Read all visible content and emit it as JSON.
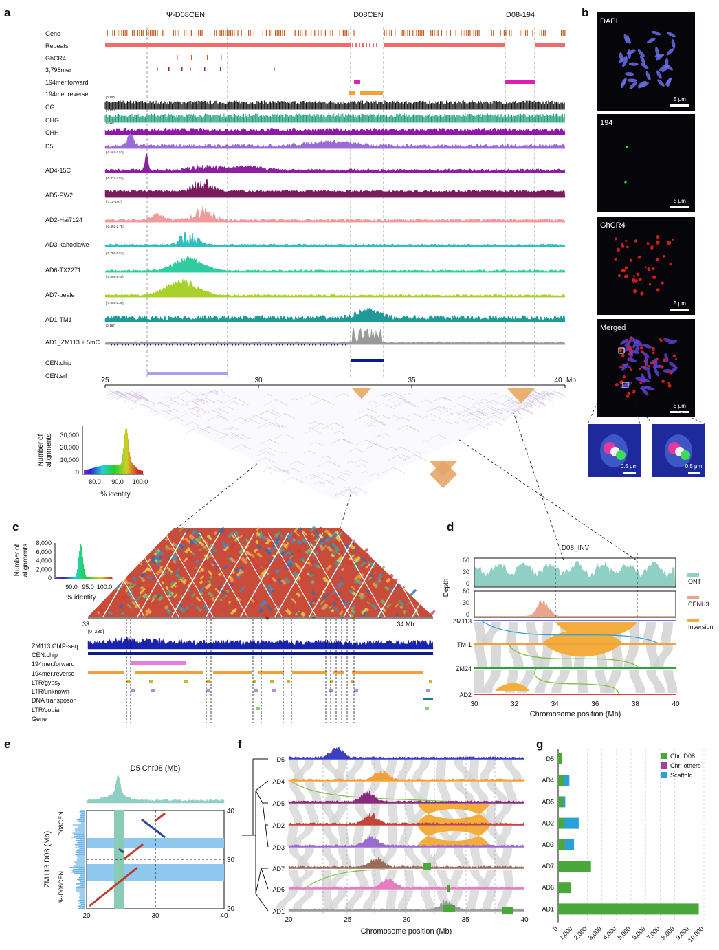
{
  "panel_letters": [
    "a",
    "b",
    "c",
    "d",
    "e",
    "f",
    "g"
  ],
  "panel_a": {
    "region_labels": [
      "Ψ-D08CEN",
      "D08CEN",
      "D08-194"
    ],
    "tracks": [
      {
        "label": "Gene",
        "scale": ""
      },
      {
        "label": "Repeats",
        "scale": ""
      },
      {
        "label": "GhCR4",
        "scale": ""
      },
      {
        "label": "3,798mer",
        "scale": ""
      },
      {
        "label": "194mer.forward",
        "scale": ""
      },
      {
        "label": "194mer.reverse",
        "scale": ""
      },
      {
        "label": "CG",
        "scale": "[0-100]"
      },
      {
        "label": "CHG",
        "scale": "[0-100]"
      },
      {
        "label": "CHH",
        "scale": "[0-12]"
      },
      {
        "label": "D5",
        "scale": "[-0.853-3.68]"
      },
      {
        "label": "AD4-15C",
        "scale": "[-0.567-2.53]"
      },
      {
        "label": "AD5-PW2",
        "scale": "[-0.873-3.51]"
      },
      {
        "label": "AD2-Hai7124",
        "scale": "[-1.11-5.07]"
      },
      {
        "label": "AD3-kahoolawe",
        "scale": "[-0.493-2.79]"
      },
      {
        "label": "AD6-TX2271",
        "scale": "[-0.780-5.53]"
      },
      {
        "label": "AD7-peale",
        "scale": "[-0.956-5.46]"
      },
      {
        "label": "AD1-TM1",
        "scale": "[-1.651-2.38]"
      },
      {
        "label": "AD1_ZM113 + 5mC",
        "scale": "[0-167]"
      },
      {
        "label": "CEN.chip",
        "scale": ""
      },
      {
        "label": "CEN.srf",
        "scale": ""
      }
    ],
    "axis_ticks": [
      "25",
      "30",
      "35",
      "40"
    ],
    "axis_unit": "Mb",
    "inset": {
      "ylabel_lines": [
        "Number of",
        "alignments"
      ],
      "xlabel": "% identity",
      "yticks": [
        "0",
        "10,000",
        "20,000",
        "30,000"
      ],
      "xticks": [
        "80.0",
        "90.0",
        "100.0"
      ]
    }
  },
  "panel_b": {
    "images": [
      {
        "label": "DAPI",
        "scalebar": "5 μm"
      },
      {
        "label": "194",
        "scalebar": "5 μm"
      },
      {
        "label": "GhCR4",
        "scalebar": "5 μm"
      },
      {
        "label": "Merged",
        "scalebar": "5 μm"
      }
    ],
    "zoom_scalebars": [
      "0.5 μm",
      "0.5 μm"
    ]
  },
  "panel_c": {
    "inset": {
      "ylabel_lines": [
        "Number of",
        "alignments"
      ],
      "xlabel": "% identity",
      "yticks": [
        "0",
        "2,000",
        "4,000",
        "6,000",
        "8,000"
      ],
      "xticks": [
        "90.0",
        "95.0",
        "100.0"
      ]
    },
    "axis_start": "33",
    "axis_end": "34 Mb",
    "chip_scale": "[0–235]",
    "tracks": [
      "ZM113 ChIP-seq",
      "CEN.chip",
      "194mer.forward",
      "194mer.reverse",
      "LTR/gypsy",
      "LTR/unknown",
      "DNA transposon",
      "LTR/copia",
      "Gene"
    ]
  },
  "panel_d": {
    "title": "D08_INV",
    "ylabel": "Depth",
    "yticks_top": [
      "60",
      "30",
      "0"
    ],
    "yticks_bottom": [
      "60",
      "30",
      "0"
    ],
    "legend": [
      {
        "label": "ONT",
        "color": "#8fcfc4"
      },
      {
        "label": "CENH3",
        "color": "#e8a48f"
      },
      {
        "label": "Inversion",
        "color": "#f4ac3d"
      }
    ],
    "genomes": [
      "ZM113",
      "TM-1",
      "ZM24",
      "AD2"
    ],
    "xticks": [
      "30",
      "32",
      "34",
      "36",
      "38",
      "40"
    ],
    "xlabel": "Chromosome position (Mb)"
  },
  "panel_e": {
    "top_label": "D5 Chr08 (Mb)",
    "ylabel": "ZM113 D08 (Mb)",
    "side_labels": [
      "D08CEN",
      "Ψ-D08CEN"
    ],
    "xticks": [
      "20",
      "30",
      "40"
    ],
    "yticks": [
      "40",
      "30",
      "20"
    ]
  },
  "panel_f": {
    "genomes": [
      "D5",
      "AD4",
      "AD5",
      "AD2",
      "AD3",
      "AD7",
      "AD6",
      "AD1"
    ],
    "xticks": [
      "20",
      "25",
      "30",
      "35",
      "40"
    ],
    "xlabel": "Chromosome position (Mb)"
  },
  "chart_data": {
    "type": "bar",
    "orientation": "horizontal",
    "stacked": true,
    "categories": [
      "D5",
      "AD4",
      "AD5",
      "AD2",
      "AD3",
      "AD7",
      "AD6",
      "AD1"
    ],
    "series": [
      {
        "name": "Chr: D08",
        "color": "#4aa83a",
        "values": [
          280,
          390,
          330,
          390,
          470,
          2250,
          850,
          9650
        ]
      },
      {
        "name": "Chr: others",
        "color": "#a23fa0",
        "values": [
          0,
          0,
          0,
          0,
          0,
          0,
          0,
          0
        ]
      },
      {
        "name": "Scaffold",
        "color": "#2aa0d6",
        "values": [
          0,
          380,
          160,
          1020,
          620,
          0,
          0,
          0
        ]
      }
    ],
    "xticks": [
      "0",
      "1,000",
      "2,000",
      "3,000",
      "4,000",
      "5,000",
      "6,000",
      "7,000",
      "8,000",
      "9,000",
      "10,000"
    ],
    "xlim": [
      0,
      10000
    ],
    "grid": true,
    "legend_position": "top-right"
  }
}
